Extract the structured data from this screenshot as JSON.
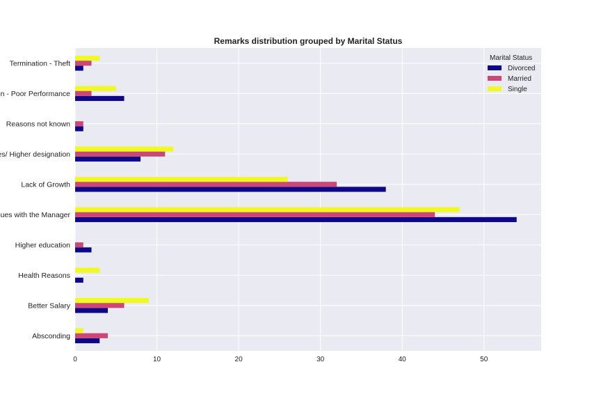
{
  "chart_data": {
    "type": "bar",
    "orientation": "horizontal",
    "title": "Remarks distribution grouped by Marital Status",
    "xlabel": "",
    "ylabel": "",
    "categories": [
      "Absconding",
      "Better Salary",
      "Health Reasons",
      "Higher education",
      "Issues with the Manager",
      "Lack of Growth",
      "Better Roles/ Higher designation",
      "Reasons not known",
      "Termination - Poor Performance",
      "Termination - Theft"
    ],
    "series": [
      {
        "name": "Divorced",
        "color": "#0d0887",
        "values": [
          3,
          4,
          1,
          2,
          54,
          38,
          8,
          1,
          6,
          1
        ]
      },
      {
        "name": "Married",
        "color": "#cc4778",
        "values": [
          4,
          6,
          0,
          1,
          44,
          32,
          11,
          1,
          2,
          2
        ]
      },
      {
        "name": "Single",
        "color": "#f0f921",
        "values": [
          1,
          9,
          3,
          0,
          47,
          26,
          12,
          0,
          5,
          3
        ]
      }
    ],
    "xlim": [
      0,
      57
    ],
    "xticks": [
      0,
      10,
      20,
      30,
      40,
      50
    ],
    "grid": true,
    "background": "#eaeaf2",
    "legend": {
      "title": "Marital Status",
      "placement": "top-right"
    }
  }
}
